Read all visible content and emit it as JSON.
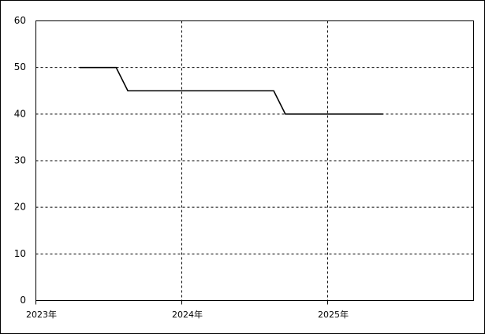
{
  "chart_data": {
    "type": "line",
    "x": [
      2023.3,
      2023.55,
      2023.63,
      2024.63,
      2024.71,
      2025.38
    ],
    "series": [
      {
        "color": "#000000",
        "values": [
          50,
          50,
          45,
          45,
          40,
          40
        ]
      }
    ],
    "xlim": [
      2023,
      2026
    ],
    "xticks": [
      {
        "value": 2023,
        "label": "2023年"
      },
      {
        "value": 2024,
        "label": "2024年"
      },
      {
        "value": 2025,
        "label": "2025年"
      }
    ],
    "ylim": [
      0,
      60
    ],
    "yticks": [
      0,
      10,
      20,
      30,
      40,
      50,
      60
    ],
    "grid": true
  }
}
